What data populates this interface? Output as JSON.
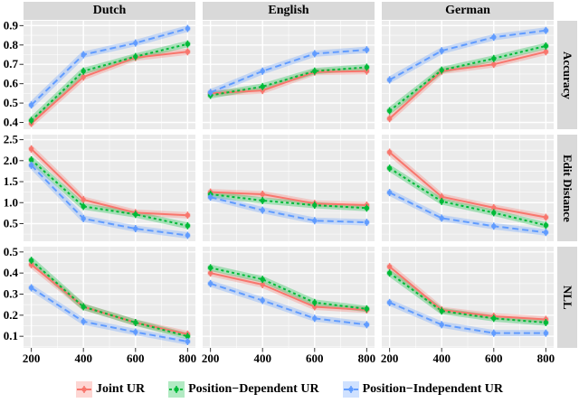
{
  "figure": {
    "description": "Faceted line chart grid: metrics vs training size for three languages"
  },
  "styles": {
    "background": "#FFFFFF",
    "panel_bg": "#EBEBEB",
    "strip_bg": "#D9D9D9",
    "grid_major": "#FFFFFF",
    "grid_minor": "#FFFFFF",
    "tick_color": "#333333",
    "text_color": "#000000"
  },
  "chart_data": {
    "type": "line",
    "grid": true,
    "legend_position": "bottom",
    "facet_columns": [
      "Dutch",
      "English",
      "German"
    ],
    "facet_rows": [
      {
        "label": "Accuracy",
        "ylim": [
          0.365,
          0.925
        ],
        "yticks": [
          0.4,
          0.5,
          0.6,
          0.7,
          0.8,
          0.9
        ],
        "ytick_labels": [
          "0.4",
          "0.5",
          "0.6",
          "0.7",
          "0.8",
          "0.9"
        ]
      },
      {
        "label": "Edit Distance",
        "ylim": [
          0.08,
          2.62
        ],
        "yticks": [
          0.5,
          1.0,
          1.5,
          2.0,
          2.5
        ],
        "ytick_labels": [
          "0.5",
          "1.0",
          "1.5",
          "2.0",
          "2.5"
        ]
      },
      {
        "label": "NLL",
        "ylim": [
          0.045,
          0.525
        ],
        "yticks": [
          0.1,
          0.2,
          0.3,
          0.4,
          0.5
        ],
        "ytick_labels": [
          "0.1",
          "0.2",
          "0.3",
          "0.4",
          "0.5"
        ]
      }
    ],
    "x": [
      200,
      400,
      600,
      800
    ],
    "xtick_labels": [
      "200",
      "400",
      "600",
      "800"
    ],
    "xlim": [
      170,
      830
    ],
    "series": [
      {
        "name": "Joint UR",
        "color": "#F8766D",
        "dash": [],
        "marker": "circle"
      },
      {
        "name": "Position−Dependent UR",
        "color": "#00BA38",
        "dash": [
          3,
          3
        ],
        "marker": "circle"
      },
      {
        "name": "Position−Independent UR",
        "color": "#619CFF",
        "dash": [
          7,
          4
        ],
        "marker": "circle"
      }
    ],
    "values": {
      "Accuracy": {
        "Dutch": {
          "Joint UR": [
            0.395,
            0.635,
            0.735,
            0.765
          ],
          "Position−Dependent UR": [
            0.41,
            0.665,
            0.74,
            0.805
          ],
          "Position−Independent UR": [
            0.49,
            0.75,
            0.81,
            0.885
          ]
        },
        "English": {
          "Joint UR": [
            0.55,
            0.565,
            0.66,
            0.665
          ],
          "Position−Dependent UR": [
            0.54,
            0.585,
            0.665,
            0.685
          ],
          "Position−Independent UR": [
            0.555,
            0.665,
            0.755,
            0.775
          ]
        },
        "German": {
          "Joint UR": [
            0.42,
            0.665,
            0.7,
            0.765
          ],
          "Position−Dependent UR": [
            0.46,
            0.67,
            0.73,
            0.795
          ],
          "Position−Independent UR": [
            0.62,
            0.77,
            0.84,
            0.875
          ]
        }
      },
      "Edit Distance": {
        "Dutch": {
          "Joint UR": [
            2.28,
            1.07,
            0.76,
            0.7
          ],
          "Position−Dependent UR": [
            2.02,
            0.91,
            0.72,
            0.45
          ],
          "Position−Independent UR": [
            1.89,
            0.62,
            0.38,
            0.22
          ]
        },
        "English": {
          "Joint UR": [
            1.25,
            1.2,
            0.98,
            0.94
          ],
          "Position−Dependent UR": [
            1.2,
            1.05,
            0.94,
            0.87
          ],
          "Position−Independent UR": [
            1.13,
            0.82,
            0.57,
            0.53
          ]
        },
        "German": {
          "Joint UR": [
            2.2,
            1.14,
            0.88,
            0.65
          ],
          "Position−Dependent UR": [
            1.82,
            1.03,
            0.76,
            0.46
          ],
          "Position−Independent UR": [
            1.24,
            0.63,
            0.44,
            0.29
          ]
        }
      },
      "NLL": {
        "Dutch": {
          "Joint UR": [
            0.44,
            0.24,
            0.165,
            0.11
          ],
          "Position−Dependent UR": [
            0.46,
            0.24,
            0.165,
            0.1
          ],
          "Position−Independent UR": [
            0.33,
            0.17,
            0.12,
            0.075
          ]
        },
        "English": {
          "Joint UR": [
            0.4,
            0.345,
            0.24,
            0.225
          ],
          "Position−Dependent UR": [
            0.425,
            0.37,
            0.26,
            0.23
          ],
          "Position−Independent UR": [
            0.35,
            0.27,
            0.185,
            0.155
          ]
        },
        "German": {
          "Joint UR": [
            0.43,
            0.225,
            0.195,
            0.18
          ],
          "Position−Dependent UR": [
            0.4,
            0.22,
            0.185,
            0.165
          ],
          "Position−Independent UR": [
            0.26,
            0.155,
            0.115,
            0.115
          ]
        }
      }
    }
  },
  "legend": {
    "items": [
      {
        "label": "Joint UR",
        "color": "#F8766D"
      },
      {
        "label": "Position−Dependent UR",
        "color": "#00BA38"
      },
      {
        "label": "Position−Independent UR",
        "color": "#619CFF"
      }
    ]
  }
}
